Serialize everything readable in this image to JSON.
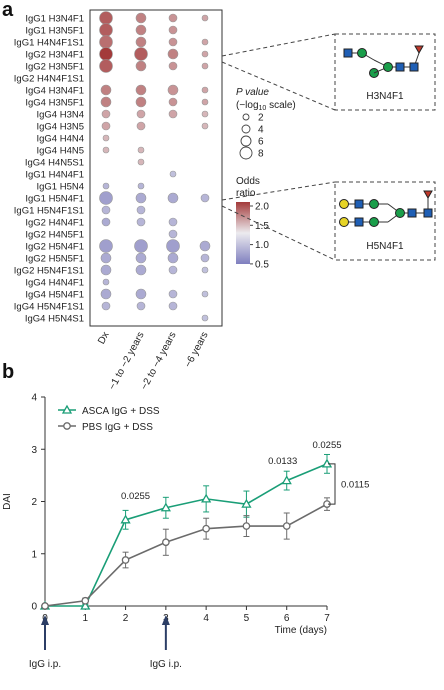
{
  "panel_a": {
    "label": "a",
    "glycans": [
      "IgG1 H3N4F1",
      "IgG1 H3N5F1",
      "IgG1 H4N4F1S1",
      "IgG2 H3N4F1",
      "IgG2 H3N5F1",
      "IgG2 H4N4F1S1",
      "IgG4 H3N4F1",
      "IgG4 H3N5F1",
      "IgG4 H3N4",
      "IgG4 H3N5",
      "IgG4 H4N4",
      "IgG4 H4N5",
      "IgG4 H4N5S1",
      "IgG1 H4N4F1",
      "IgG1 H5N4",
      "IgG1 H5N4F1",
      "IgG1 H5N4F1S1",
      "IgG2 H4N4F1",
      "IgG2 H4N5F1",
      "IgG2 H5N4F1",
      "IgG2 H5N5F1",
      "IgG2 H5N4F1S1",
      "IgG4 H4N4F1",
      "IgG4 H5N4F1",
      "IgG4 H5N4F1S1",
      "IgG4 H5N4S1"
    ],
    "timepoints": [
      "Dx",
      "−1 to −2 years",
      "−2 to −4 years",
      "−6 years"
    ],
    "size_legend": {
      "title_line1": "P value",
      "title_line2": "(−log",
      "title_sub": "10",
      "title_line2_end": " scale)",
      "levels": [
        "2",
        "4",
        "6",
        "8"
      ]
    },
    "color_legend": {
      "title": "Odds ratio",
      "ticks": [
        "2.0",
        "1.5",
        "1.0",
        "0.5"
      ]
    },
    "glycan_boxes": [
      {
        "name": "H3N4F1"
      },
      {
        "name": "H5N4F1"
      }
    ],
    "colors": {
      "high": "#a33a3a",
      "mid": "#e8e8ec",
      "low": "#7f7fbf"
    }
  },
  "chart_data": {
    "type": "line",
    "panel_label": "b",
    "xlabel": "Time (days)",
    "ylabel": "DAI",
    "x": [
      0,
      1,
      2,
      3,
      4,
      5,
      6,
      7
    ],
    "xlim": [
      0,
      7
    ],
    "ylim": [
      0,
      4
    ],
    "xticks": [
      "0",
      "1",
      "2",
      "3",
      "4",
      "5",
      "6",
      "7"
    ],
    "yticks": [
      "0",
      "1",
      "2",
      "3",
      "4"
    ],
    "series": [
      {
        "name": "ASCA IgG + DSS",
        "color": "#1a9e77",
        "marker": "triangle",
        "values": [
          0,
          0,
          1.65,
          1.88,
          2.05,
          1.95,
          2.4,
          2.72
        ],
        "errors": [
          0.02,
          0.03,
          0.18,
          0.2,
          0.25,
          0.25,
          0.18,
          0.18
        ]
      },
      {
        "name": "PBS IgG + DSS",
        "color": "#6b6b6b",
        "marker": "circle",
        "values": [
          0,
          0.1,
          0.88,
          1.22,
          1.48,
          1.53,
          1.53,
          1.95
        ],
        "errors": [
          0.02,
          0.05,
          0.15,
          0.25,
          0.2,
          0.2,
          0.25,
          0.12
        ]
      }
    ],
    "annotations": [
      {
        "text": "0.0255",
        "x": 2
      },
      {
        "text": "0.0133",
        "x": 6
      },
      {
        "text": "0.0255",
        "x": 7
      },
      {
        "text": "0.0115",
        "bracket": true
      }
    ],
    "arrows": [
      {
        "x": 0,
        "text": "IgG i.p."
      },
      {
        "x": 3,
        "text": "IgG i.p."
      }
    ]
  }
}
